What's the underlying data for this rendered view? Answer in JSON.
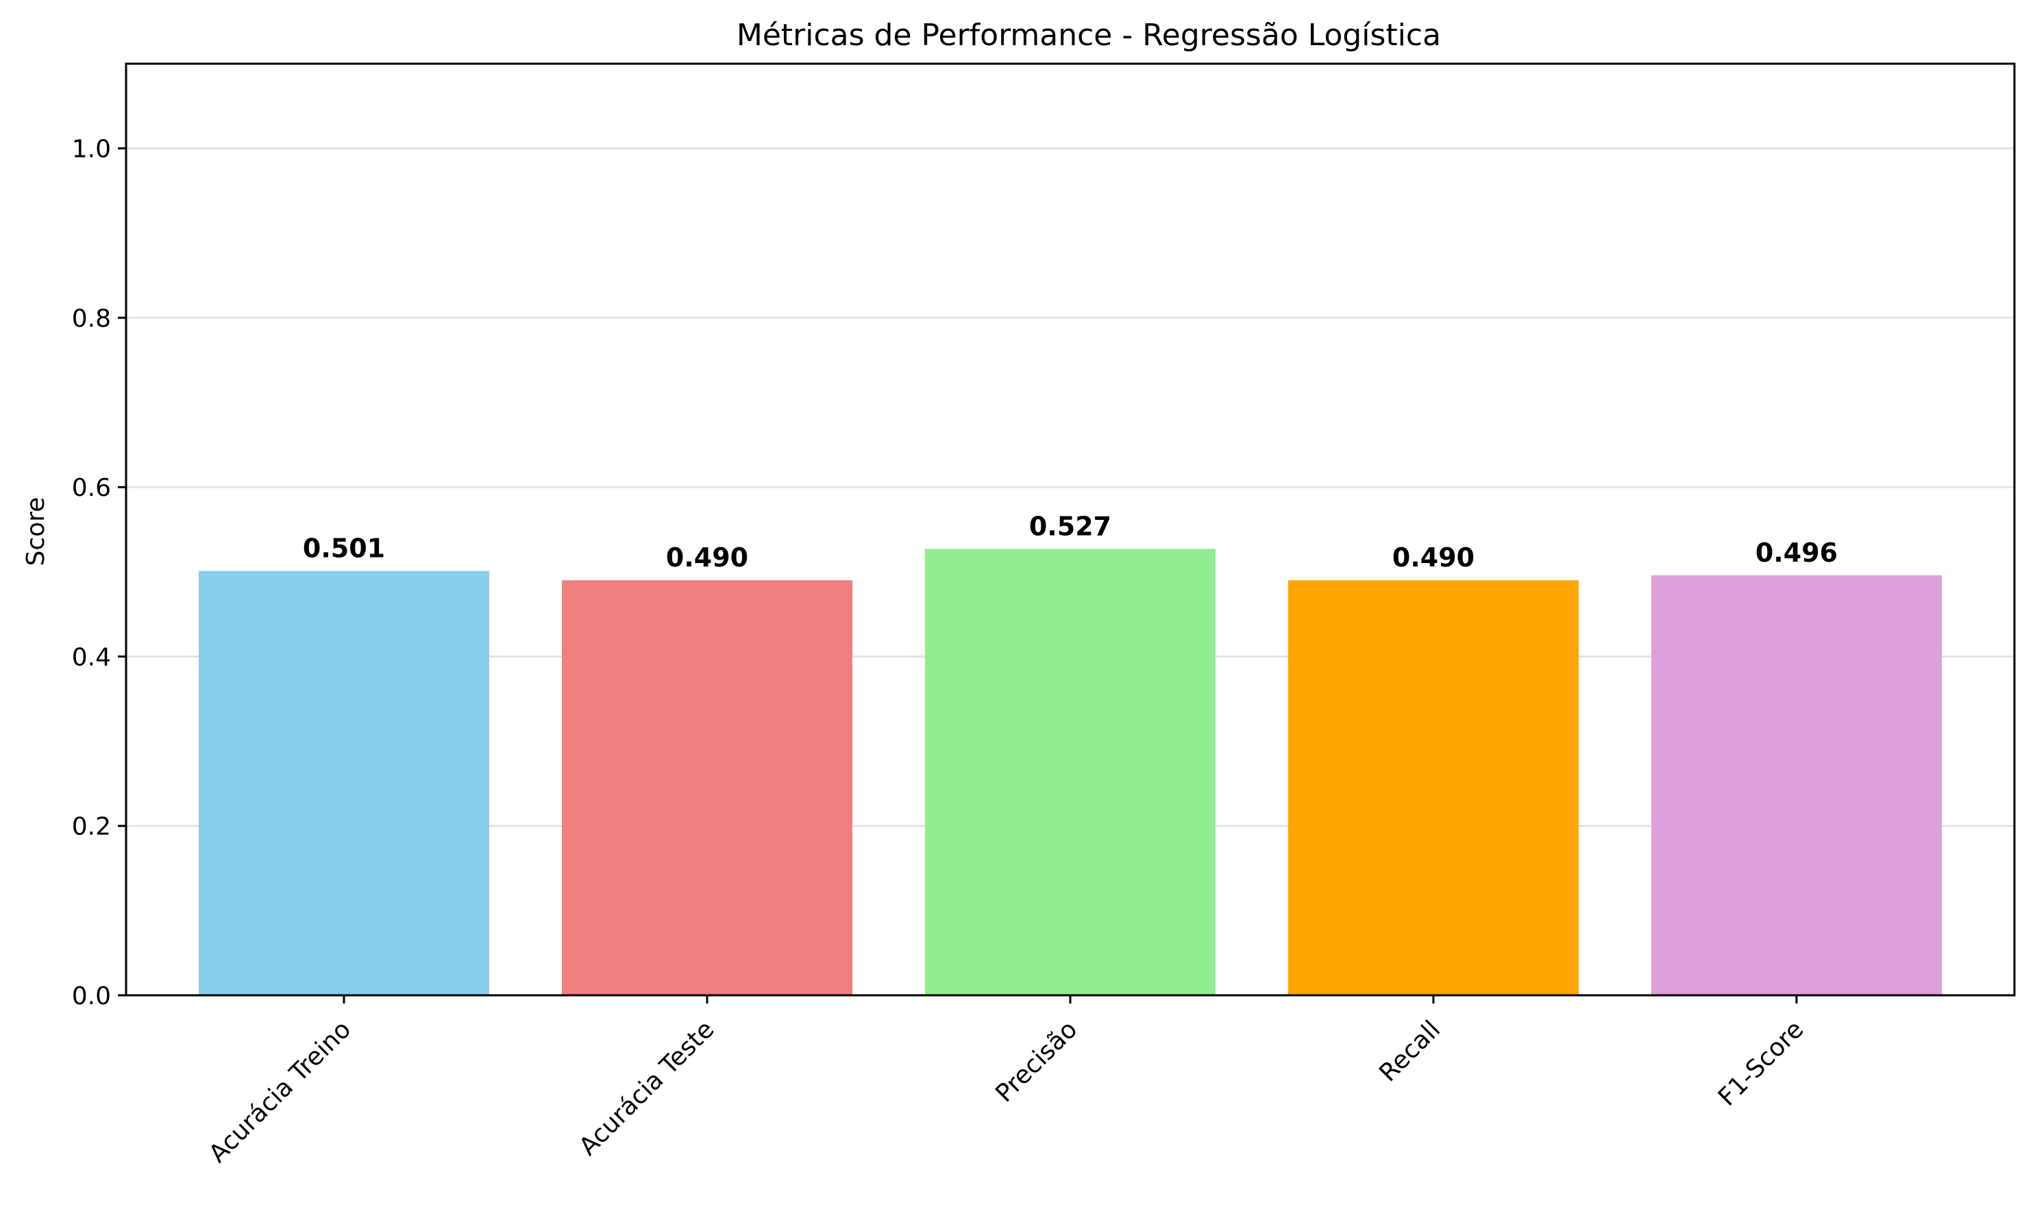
{
  "chart_data": {
    "type": "bar",
    "title": "Métricas de Performance - Regressão Logística",
    "xlabel": "",
    "ylabel": "Score",
    "categories": [
      "Acurácia Treino",
      "Acurácia Teste",
      "Precisão",
      "Recall",
      "F1-Score"
    ],
    "values": [
      0.501,
      0.49,
      0.527,
      0.49,
      0.496
    ],
    "value_labels": [
      "0.501",
      "0.490",
      "0.527",
      "0.490",
      "0.496"
    ],
    "colors": [
      "#87ceeb",
      "#f08080",
      "#90ee90",
      "#ffa500",
      "#dda0dd"
    ],
    "ylim": [
      0,
      1.1
    ],
    "yticks": [
      0.0,
      0.2,
      0.4,
      0.6,
      0.8,
      1.0
    ],
    "ytick_labels": [
      "0.0",
      "0.2",
      "0.4",
      "0.6",
      "0.8",
      "1.0"
    ],
    "grid": "horizontal",
    "x_tick_rotation": "45 degrees"
  }
}
